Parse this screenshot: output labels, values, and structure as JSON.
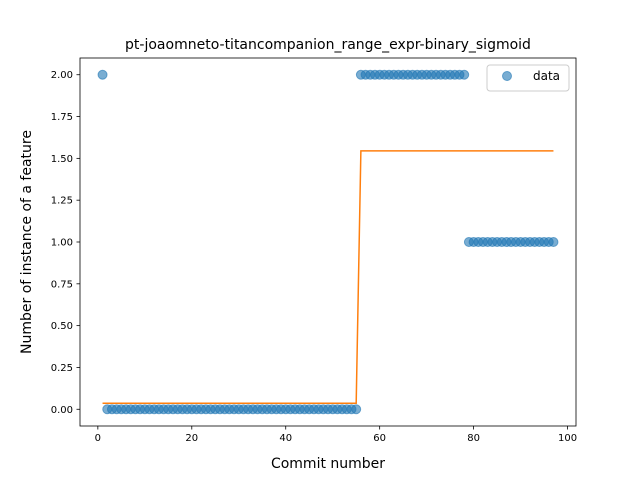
{
  "chart_data": {
    "type": "scatter",
    "title": "pt-joaomneto-titancompanion_range_expr-binary_sigmoid",
    "xlabel": "Commit number",
    "ylabel": "Number of instance of a feature",
    "xlim": [
      -3.8,
      101.8
    ],
    "ylim": [
      -0.1,
      2.1
    ],
    "xticks": [
      0,
      20,
      40,
      60,
      80,
      100
    ],
    "yticks": [
      0.0,
      0.25,
      0.5,
      0.75,
      1.0,
      1.25,
      1.5,
      1.75,
      2.0
    ],
    "ytick_labels": [
      "0.00",
      "0.25",
      "0.50",
      "0.75",
      "1.00",
      "1.25",
      "1.50",
      "1.75",
      "2.00"
    ],
    "grid": false,
    "legend": {
      "position": "top-right",
      "entries": [
        "data"
      ]
    },
    "series": [
      {
        "name": "data",
        "kind": "scatter",
        "color": "#1f77b4",
        "points": [
          [
            1,
            2
          ],
          [
            2,
            0
          ],
          [
            3,
            0
          ],
          [
            4,
            0
          ],
          [
            5,
            0
          ],
          [
            6,
            0
          ],
          [
            7,
            0
          ],
          [
            8,
            0
          ],
          [
            9,
            0
          ],
          [
            10,
            0
          ],
          [
            11,
            0
          ],
          [
            12,
            0
          ],
          [
            13,
            0
          ],
          [
            14,
            0
          ],
          [
            15,
            0
          ],
          [
            16,
            0
          ],
          [
            17,
            0
          ],
          [
            18,
            0
          ],
          [
            19,
            0
          ],
          [
            20,
            0
          ],
          [
            21,
            0
          ],
          [
            22,
            0
          ],
          [
            23,
            0
          ],
          [
            24,
            0
          ],
          [
            25,
            0
          ],
          [
            26,
            0
          ],
          [
            27,
            0
          ],
          [
            28,
            0
          ],
          [
            29,
            0
          ],
          [
            30,
            0
          ],
          [
            31,
            0
          ],
          [
            32,
            0
          ],
          [
            33,
            0
          ],
          [
            34,
            0
          ],
          [
            35,
            0
          ],
          [
            36,
            0
          ],
          [
            37,
            0
          ],
          [
            38,
            0
          ],
          [
            39,
            0
          ],
          [
            40,
            0
          ],
          [
            41,
            0
          ],
          [
            42,
            0
          ],
          [
            43,
            0
          ],
          [
            44,
            0
          ],
          [
            45,
            0
          ],
          [
            46,
            0
          ],
          [
            47,
            0
          ],
          [
            48,
            0
          ],
          [
            49,
            0
          ],
          [
            50,
            0
          ],
          [
            51,
            0
          ],
          [
            52,
            0
          ],
          [
            53,
            0
          ],
          [
            54,
            0
          ],
          [
            55,
            0
          ],
          [
            56,
            2
          ],
          [
            57,
            2
          ],
          [
            58,
            2
          ],
          [
            59,
            2
          ],
          [
            60,
            2
          ],
          [
            61,
            2
          ],
          [
            62,
            2
          ],
          [
            63,
            2
          ],
          [
            64,
            2
          ],
          [
            65,
            2
          ],
          [
            66,
            2
          ],
          [
            67,
            2
          ],
          [
            68,
            2
          ],
          [
            69,
            2
          ],
          [
            70,
            2
          ],
          [
            71,
            2
          ],
          [
            72,
            2
          ],
          [
            73,
            2
          ],
          [
            74,
            2
          ],
          [
            75,
            2
          ],
          [
            76,
            2
          ],
          [
            77,
            2
          ],
          [
            78,
            2
          ],
          [
            79,
            1
          ],
          [
            80,
            1
          ],
          [
            81,
            1
          ],
          [
            82,
            1
          ],
          [
            83,
            1
          ],
          [
            84,
            1
          ],
          [
            85,
            1
          ],
          [
            86,
            1
          ],
          [
            87,
            1
          ],
          [
            88,
            1
          ],
          [
            89,
            1
          ],
          [
            90,
            1
          ],
          [
            91,
            1
          ],
          [
            92,
            1
          ],
          [
            93,
            1
          ],
          [
            94,
            1
          ],
          [
            95,
            1
          ],
          [
            96,
            1
          ],
          [
            97,
            1
          ]
        ]
      },
      {
        "kind": "line",
        "color": "#ff7f0e",
        "points": [
          [
            1,
            0.036
          ],
          [
            55,
            0.036
          ],
          [
            56,
            1.545
          ],
          [
            97,
            1.545
          ]
        ]
      }
    ]
  }
}
